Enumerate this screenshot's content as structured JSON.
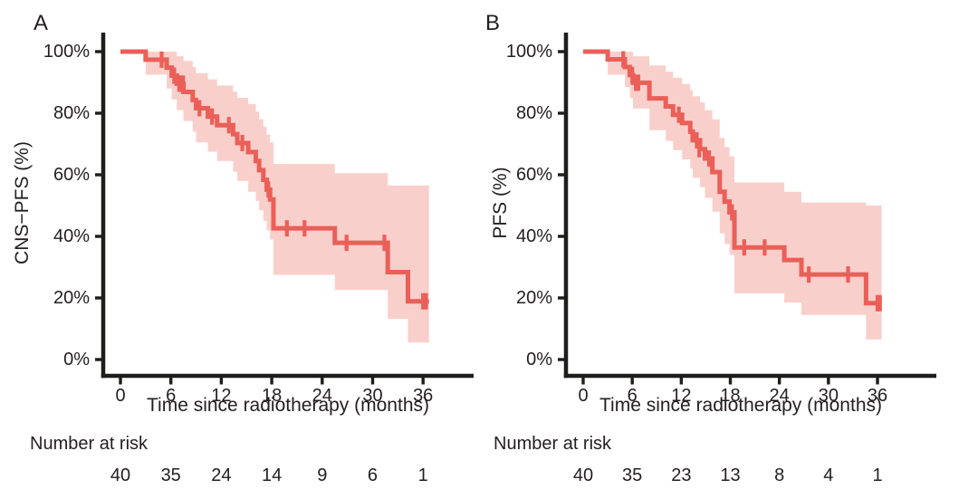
{
  "figure": {
    "panels": [
      {
        "label": "A",
        "y_axis_title": "CNS−PFS (%)",
        "x_axis_title": "Time since radiotherapy (months)",
        "risk_header": "Number at risk",
        "y_tick_labels": [
          "100%",
          "80%",
          "60%",
          "40%",
          "20%",
          "0%"
        ],
        "x_tick_labels": [
          "0",
          "6",
          "12",
          "18",
          "24",
          "30",
          "36"
        ],
        "risk_numbers": [
          "40",
          "35",
          "24",
          "14",
          "9",
          "6",
          "1"
        ]
      },
      {
        "label": "B",
        "y_axis_title": "PFS (%)",
        "x_axis_title": "Time since radiotherapy (months)",
        "risk_header": "Number at risk",
        "y_tick_labels": [
          "100%",
          "80%",
          "60%",
          "40%",
          "20%",
          "0%"
        ],
        "x_tick_labels": [
          "0",
          "6",
          "12",
          "18",
          "24",
          "30",
          "36"
        ],
        "risk_numbers": [
          "40",
          "35",
          "23",
          "13",
          "8",
          "4",
          "1"
        ]
      }
    ]
  },
  "colors": {
    "line": "#ea5f58",
    "band": "#f9cfcb",
    "axis": "#1d1d1b",
    "text": "#231f20"
  },
  "chart_data": [
    {
      "type": "line",
      "subtype": "kaplan-meier-step",
      "name": "CNS-PFS",
      "ylabel": "CNS−PFS (%)",
      "xlabel": "Time since radiotherapy (months)",
      "xlim": [
        0,
        39
      ],
      "ylim": [
        0,
        100
      ],
      "x_ticks": [
        0,
        6,
        12,
        18,
        24,
        30,
        36
      ],
      "y_ticks": [
        100,
        80,
        60,
        40,
        20,
        0
      ],
      "grid": false,
      "legend": false,
      "end_time": 36.7,
      "steps": [
        [
          0,
          100
        ],
        [
          3.0,
          97.4
        ],
        [
          5.5,
          94.8
        ],
        [
          6.1,
          92.2
        ],
        [
          6.7,
          89.6
        ],
        [
          7.5,
          86.9
        ],
        [
          8.6,
          84.3
        ],
        [
          9.0,
          81.6
        ],
        [
          10.4,
          78.9
        ],
        [
          11.5,
          76.1
        ],
        [
          13.4,
          73.2
        ],
        [
          13.9,
          70.3
        ],
        [
          15.2,
          67.4
        ],
        [
          16.1,
          64.5
        ],
        [
          16.5,
          61.5
        ],
        [
          17.0,
          58.4
        ],
        [
          17.4,
          55.2
        ],
        [
          17.8,
          52.0
        ],
        [
          18.2,
          42.6
        ],
        [
          25.5,
          37.9
        ],
        [
          31.8,
          28.4
        ],
        [
          34.2,
          18.9
        ]
      ],
      "ci": [
        [
          0,
          100,
          100
        ],
        [
          3.0,
          100,
          92.5
        ],
        [
          5.5,
          100,
          88
        ],
        [
          6.1,
          100,
          84.5
        ],
        [
          6.7,
          98.5,
          81
        ],
        [
          7.5,
          97,
          77.5
        ],
        [
          8.6,
          95,
          74
        ],
        [
          9.0,
          93,
          70.5
        ],
        [
          10.4,
          91,
          67.5
        ],
        [
          11.5,
          89,
          64.5
        ],
        [
          13.4,
          87,
          61
        ],
        [
          13.9,
          85,
          58
        ],
        [
          15.2,
          83,
          54.5
        ],
        [
          16.1,
          80.5,
          51.5
        ],
        [
          16.5,
          78,
          48.5
        ],
        [
          17.0,
          75.5,
          45
        ],
        [
          17.4,
          73,
          42
        ],
        [
          17.8,
          70.5,
          39
        ],
        [
          18.2,
          63.5,
          27.5
        ],
        [
          25.5,
          60.5,
          22.6
        ],
        [
          31.8,
          56.5,
          13.2
        ],
        [
          34.2,
          56.5,
          5.5
        ]
      ],
      "censors": [
        [
          4.9,
          97.4
        ],
        [
          6.4,
          92.2
        ],
        [
          7.0,
          89.6
        ],
        [
          7.2,
          89.6
        ],
        [
          7.45,
          89.6
        ],
        [
          9.4,
          81.6
        ],
        [
          10.9,
          78.9
        ],
        [
          12.9,
          76.1
        ],
        [
          14.5,
          70.3
        ],
        [
          17.6,
          55.2
        ],
        [
          19.8,
          42.6
        ],
        [
          21.9,
          42.6
        ],
        [
          26.9,
          37.9
        ],
        [
          31.4,
          37.9
        ],
        [
          36.0,
          18.9
        ],
        [
          36.35,
          18.9
        ]
      ],
      "number_at_risk": {
        "times": [
          0,
          6,
          12,
          18,
          24,
          30,
          36
        ],
        "counts": [
          40,
          35,
          24,
          14,
          9,
          6,
          1
        ]
      }
    },
    {
      "type": "line",
      "subtype": "kaplan-meier-step",
      "name": "PFS",
      "ylabel": "PFS (%)",
      "xlabel": "Time since radiotherapy (months)",
      "xlim": [
        0,
        39
      ],
      "ylim": [
        0,
        100
      ],
      "x_ticks": [
        0,
        6,
        12,
        18,
        24,
        30,
        36
      ],
      "y_ticks": [
        100,
        80,
        60,
        40,
        20,
        0
      ],
      "grid": false,
      "legend": false,
      "end_time": 36.5,
      "steps": [
        [
          0,
          100
        ],
        [
          3.0,
          97.5
        ],
        [
          5.1,
          95.0
        ],
        [
          5.7,
          92.4
        ],
        [
          6.1,
          89.9
        ],
        [
          8.1,
          84.8
        ],
        [
          10.1,
          82.2
        ],
        [
          11.0,
          79.5
        ],
        [
          12.1,
          76.8
        ],
        [
          13.1,
          74.0
        ],
        [
          13.4,
          71.2
        ],
        [
          14.3,
          68.3
        ],
        [
          14.9,
          65.3
        ],
        [
          15.8,
          60.9
        ],
        [
          16.7,
          54.5
        ],
        [
          17.3,
          51.3
        ],
        [
          17.9,
          47.8
        ],
        [
          18.5,
          36.4
        ],
        [
          24.6,
          32.3
        ],
        [
          26.7,
          27.6
        ],
        [
          34.6,
          18.3
        ]
      ],
      "ci": [
        [
          0,
          100,
          100
        ],
        [
          3.0,
          100,
          92.5
        ],
        [
          5.1,
          100,
          88.5
        ],
        [
          5.7,
          100,
          85
        ],
        [
          6.1,
          98.5,
          81.5
        ],
        [
          8.1,
          95.5,
          74.5
        ],
        [
          10.1,
          93.5,
          71
        ],
        [
          11.0,
          91.5,
          68
        ],
        [
          12.1,
          89.5,
          65
        ],
        [
          13.1,
          87.5,
          62
        ],
        [
          13.4,
          85.5,
          59
        ],
        [
          14.3,
          83.5,
          56
        ],
        [
          14.9,
          81,
          52.5
        ],
        [
          15.8,
          78,
          48
        ],
        [
          16.7,
          72,
          41
        ],
        [
          17.3,
          69,
          37.5
        ],
        [
          17.9,
          66,
          34
        ],
        [
          18.5,
          57.5,
          21.5
        ],
        [
          24.6,
          54.5,
          18.5
        ],
        [
          26.7,
          51,
          14.5
        ],
        [
          34.6,
          50,
          6.5
        ]
      ],
      "censors": [
        [
          4.9,
          97.5
        ],
        [
          6.0,
          92.4
        ],
        [
          6.45,
          89.9
        ],
        [
          6.75,
          89.9
        ],
        [
          11.7,
          79.5
        ],
        [
          13.9,
          71.2
        ],
        [
          14.2,
          68.3
        ],
        [
          15.4,
          65.3
        ],
        [
          18.2,
          47.8
        ],
        [
          19.7,
          36.4
        ],
        [
          22.2,
          36.4
        ],
        [
          27.6,
          27.6
        ],
        [
          32.4,
          27.6
        ],
        [
          36.0,
          18.3
        ],
        [
          36.3,
          18.3
        ]
      ],
      "number_at_risk": {
        "times": [
          0,
          6,
          12,
          18,
          24,
          30,
          36
        ],
        "counts": [
          40,
          35,
          23,
          13,
          8,
          4,
          1
        ]
      }
    }
  ]
}
